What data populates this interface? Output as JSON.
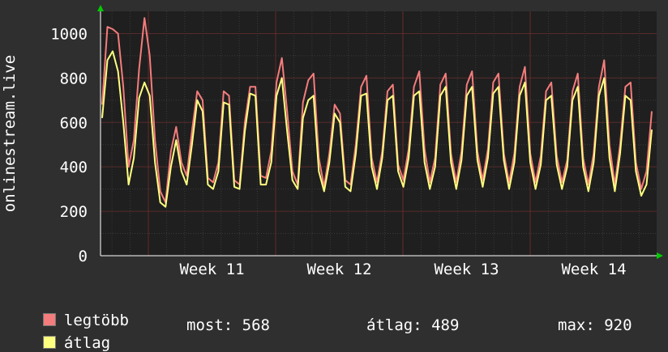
{
  "chart_data": {
    "type": "line",
    "ylabel": "onlinestream.live",
    "ylim": [
      0,
      1100
    ],
    "y_ticks": [
      "0",
      "200",
      "400",
      "600",
      "800",
      "1000"
    ],
    "x_ticks": [
      "Week 11",
      "Week 12",
      "Week 13",
      "Week 14"
    ],
    "grid": true,
    "series": [
      {
        "name": "legtöbb",
        "color": "#f47c7c",
        "values": [
          680,
          1030,
          1020,
          1000,
          760,
          400,
          520,
          840,
          1070,
          900,
          520,
          290,
          240,
          470,
          580,
          420,
          360,
          560,
          740,
          700,
          350,
          330,
          420,
          740,
          720,
          340,
          320,
          600,
          760,
          760,
          360,
          350,
          470,
          780,
          890,
          650,
          380,
          320,
          690,
          790,
          820,
          440,
          310,
          460,
          680,
          640,
          340,
          320,
          500,
          760,
          810,
          440,
          330,
          470,
          740,
          770,
          410,
          340,
          480,
          760,
          830,
          480,
          330,
          440,
          770,
          820,
          460,
          330,
          470,
          770,
          830,
          470,
          340,
          480,
          780,
          820,
          460,
          330,
          460,
          760,
          850,
          460,
          330,
          450,
          740,
          780,
          450,
          330,
          430,
          740,
          820,
          440,
          320,
          460,
          760,
          880,
          500,
          320,
          500,
          760,
          780,
          420,
          300,
          380,
          650
        ]
      },
      {
        "name": "átlag",
        "color": "#ffff80",
        "values": [
          620,
          880,
          920,
          830,
          600,
          320,
          440,
          710,
          780,
          720,
          420,
          240,
          220,
          400,
          520,
          380,
          320,
          500,
          700,
          650,
          320,
          300,
          380,
          690,
          680,
          310,
          300,
          560,
          730,
          720,
          320,
          320,
          420,
          720,
          800,
          560,
          340,
          300,
          620,
          700,
          720,
          380,
          290,
          420,
          640,
          600,
          310,
          290,
          460,
          720,
          730,
          400,
          300,
          440,
          700,
          720,
          380,
          310,
          440,
          720,
          740,
          420,
          300,
          400,
          720,
          760,
          420,
          300,
          430,
          720,
          760,
          430,
          310,
          440,
          730,
          760,
          430,
          300,
          420,
          720,
          780,
          420,
          300,
          410,
          700,
          720,
          410,
          300,
          400,
          700,
          760,
          400,
          290,
          420,
          720,
          800,
          440,
          290,
          460,
          720,
          700,
          380,
          270,
          320,
          568
        ]
      }
    ]
  },
  "legend": {
    "max_label": "legtöbb",
    "avg_label": "átlag"
  },
  "stats": {
    "current": "most: 568",
    "average": "átlag: 489",
    "maximum": "max: 920"
  }
}
